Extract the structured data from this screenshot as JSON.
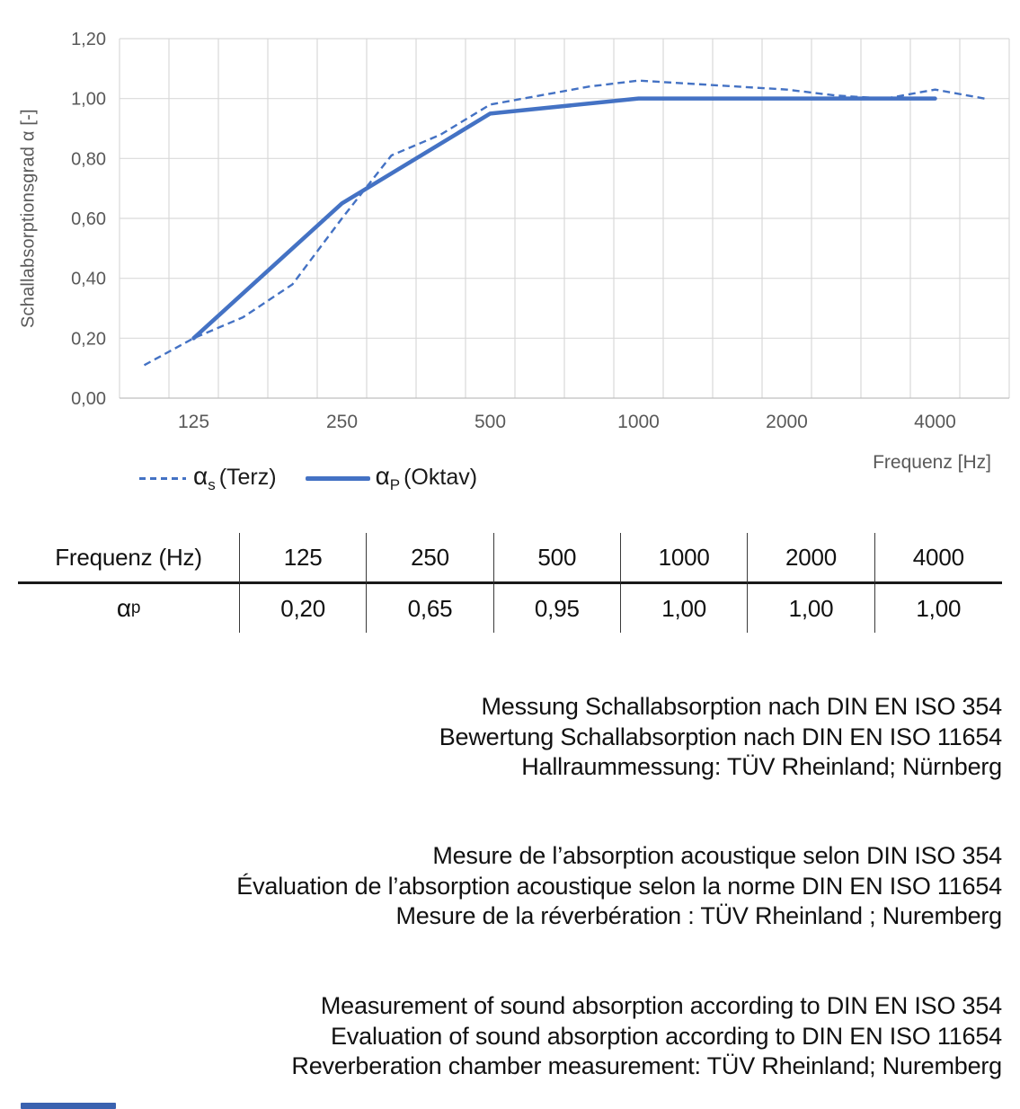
{
  "chart_data": {
    "type": "line",
    "x_axis": "frequency, logarithmic third-octave categories",
    "categories": [
      100,
      125,
      160,
      200,
      250,
      315,
      400,
      500,
      630,
      800,
      1000,
      1250,
      1600,
      2000,
      2500,
      3150,
      4000,
      5000
    ],
    "series": [
      {
        "name": "αs (Terz)",
        "style": "dashed",
        "x": [
          100,
          125,
          160,
          200,
          250,
          315,
          400,
          500,
          630,
          800,
          1000,
          1250,
          1600,
          2000,
          2500,
          3150,
          4000,
          5000
        ],
        "values": [
          0.11,
          0.2,
          0.27,
          0.38,
          0.6,
          0.81,
          0.88,
          0.98,
          1.01,
          1.04,
          1.06,
          1.05,
          1.04,
          1.03,
          1.01,
          1.0,
          1.03,
          1.0
        ]
      },
      {
        "name": "αP (Oktav)",
        "style": "solid",
        "x": [
          125,
          250,
          500,
          1000,
          2000,
          4000
        ],
        "values": [
          0.2,
          0.65,
          0.95,
          1.0,
          1.0,
          1.0
        ]
      }
    ],
    "title": "",
    "xlabel": "Frequenz [Hz]",
    "ylabel": "Schallabsorptionsgrad α [-]",
    "ylim": [
      0,
      1.2
    ],
    "ytick_step": 0.2,
    "ytick_labels": [
      "0,00",
      "0,20",
      "0,40",
      "0,60",
      "0,80",
      "1,00",
      "1,20"
    ],
    "xtick_positions": [
      125,
      250,
      500,
      1000,
      2000,
      4000
    ],
    "xtick_labels": [
      "125",
      "250",
      "500",
      "1000",
      "2000",
      "4000"
    ],
    "grid": true,
    "legend_position": "bottom-left",
    "colors": {
      "line": "#4472C4",
      "grid": "#D9D9D9",
      "axis_line": "#BFBFBF",
      "axis_text": "#595959"
    }
  },
  "axis": {
    "y_title": "Schallabsorptionsgrad α [-]",
    "x_title": "Frequenz [Hz]"
  },
  "legend": {
    "items": [
      {
        "symbol": "α",
        "sub": "s",
        "rest": "(Terz)"
      },
      {
        "symbol": "α",
        "sub": "P",
        "rest": "(Oktav)"
      }
    ]
  },
  "table": {
    "header_label": "Frequenz (Hz)",
    "row_symbol": "α",
    "row_sub": "p",
    "frequencies": [
      "125",
      "250",
      "500",
      "1000",
      "2000",
      "4000"
    ],
    "values": [
      "0,20",
      "0,65",
      "0,95",
      "1,00",
      "1,00",
      "1,00"
    ]
  },
  "notes": {
    "german": [
      "Messung Schallabsorption nach DIN EN ISO 354",
      "Bewertung Schallabsorption nach DIN EN ISO 11654",
      "Hallraummessung: TÜV Rheinland; Nürnberg"
    ],
    "french": [
      "Mesure de l’absorption acoustique selon DIN ISO 354",
      "Évaluation de l’absorption acoustique selon la norme DIN EN ISO 11654",
      "Mesure de la réverbération : TÜV Rheinland ; Nuremberg"
    ],
    "english": [
      "Measurement of sound absorption according to DIN EN ISO 354",
      "Evaluation of sound absorption according to DIN EN ISO 11654",
      "Reverberation chamber measurement: TÜV Rheinland; Nuremberg"
    ]
  },
  "footer": {
    "accent_color": "#3A62B0"
  }
}
